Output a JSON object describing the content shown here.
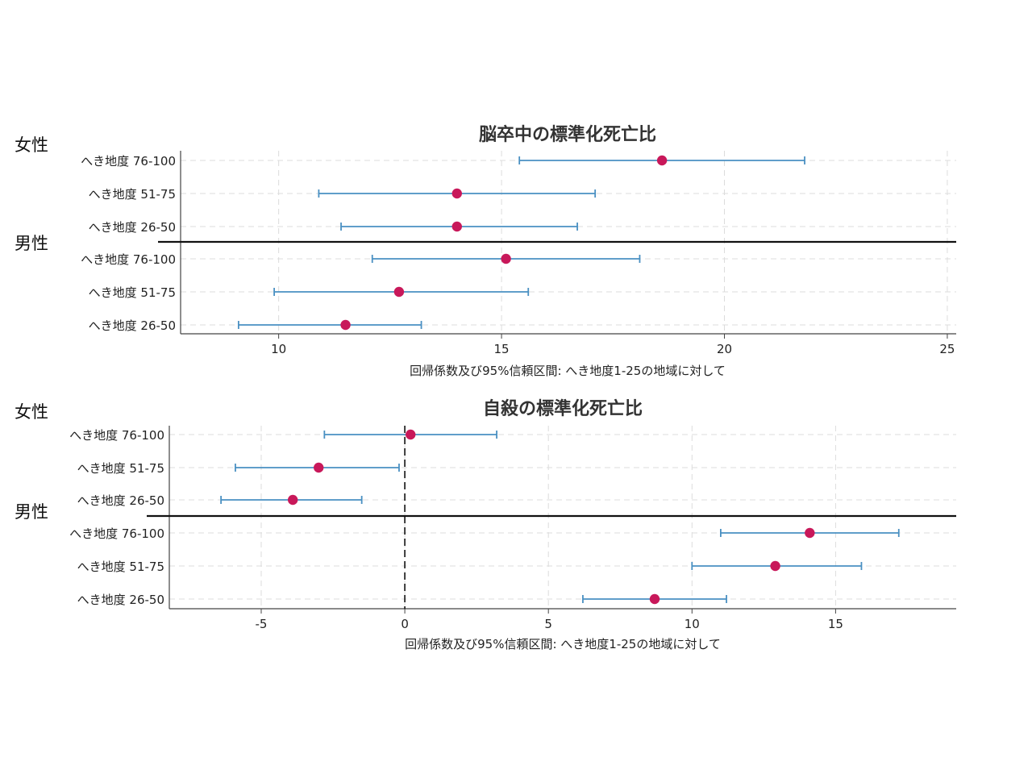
{
  "colors": {
    "ci": "#4a90c2",
    "point": "#c8185a",
    "separator": "#111111"
  },
  "chart_data": [
    {
      "type": "forest",
      "title": "脳卒中の標準化死亡比",
      "xlabel": "回帰係数及び95%信頼区間: へき地度1-25の地域に対して",
      "xlim": [
        7.8,
        25.2
      ],
      "xticks": [
        10,
        15,
        20,
        25
      ],
      "reference_line": null,
      "group_labels": [
        "女性",
        "男性"
      ],
      "rows": [
        {
          "group": "女性",
          "label": "へき地度 76-100",
          "estimate": 18.6,
          "lower": 15.4,
          "upper": 21.8
        },
        {
          "group": "女性",
          "label": "へき地度 51-75",
          "estimate": 14.0,
          "lower": 10.9,
          "upper": 17.1
        },
        {
          "group": "女性",
          "label": "へき地度 26-50",
          "estimate": 14.0,
          "lower": 11.4,
          "upper": 16.7
        },
        {
          "group": "男性",
          "label": "へき地度 76-100",
          "estimate": 15.1,
          "lower": 12.1,
          "upper": 18.1
        },
        {
          "group": "男性",
          "label": "へき地度 51-75",
          "estimate": 12.7,
          "lower": 9.9,
          "upper": 15.6
        },
        {
          "group": "男性",
          "label": "へき地度 26-50",
          "estimate": 11.5,
          "lower": 9.1,
          "upper": 13.2
        }
      ]
    },
    {
      "type": "forest",
      "title": "自殺の標準化死亡比",
      "xlabel": "回帰係数及び95%信頼区間: へき地度1-25の地域に対して",
      "xlim": [
        -8.2,
        19.2
      ],
      "xticks": [
        -5,
        0,
        5,
        10,
        15
      ],
      "reference_line": 0,
      "group_labels": [
        "女性",
        "男性"
      ],
      "rows": [
        {
          "group": "女性",
          "label": "へき地度 76-100",
          "estimate": 0.2,
          "lower": -2.8,
          "upper": 3.2
        },
        {
          "group": "女性",
          "label": "へき地度 51-75",
          "estimate": -3.0,
          "lower": -5.9,
          "upper": -0.2
        },
        {
          "group": "女性",
          "label": "へき地度 26-50",
          "estimate": -3.9,
          "lower": -6.4,
          "upper": -1.5
        },
        {
          "group": "男性",
          "label": "へき地度 76-100",
          "estimate": 14.1,
          "lower": 11.0,
          "upper": 17.2
        },
        {
          "group": "男性",
          "label": "へき地度 51-75",
          "estimate": 12.9,
          "lower": 10.0,
          "upper": 15.9
        },
        {
          "group": "男性",
          "label": "へき地度 26-50",
          "estimate": 8.7,
          "lower": 6.2,
          "upper": 11.2
        }
      ]
    }
  ]
}
